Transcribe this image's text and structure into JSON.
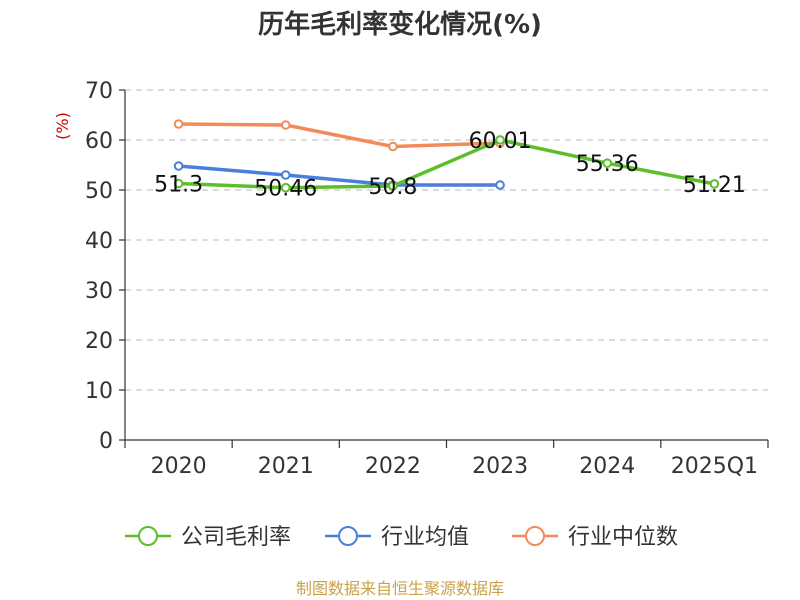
{
  "chart_data": {
    "type": "line",
    "title": "历年毛利率变化情况(%)",
    "unit_label": "(%)",
    "categories": [
      "2020",
      "2021",
      "2022",
      "2023",
      "2024",
      "2025Q1"
    ],
    "ylim": [
      0,
      70
    ],
    "yticks": [
      "0",
      "10",
      "20",
      "30",
      "40",
      "50",
      "60",
      "70"
    ],
    "grid": true,
    "legend_position": "bottom",
    "series": [
      {
        "name": "公司毛利率",
        "color": "#5bbf2a",
        "values": [
          51.3,
          50.46,
          50.8,
          60.01,
          55.36,
          51.21
        ],
        "labels": [
          "51.3",
          "50.46",
          "50.8",
          "60.01",
          "55.36",
          "51.21"
        ]
      },
      {
        "name": "行业均值",
        "color": "#4a7fdb",
        "values": [
          54.8,
          53.0,
          51.0,
          51.0,
          null,
          null
        ]
      },
      {
        "name": "行业中位数",
        "color": "#f28b59",
        "values": [
          63.2,
          63.0,
          58.7,
          59.4,
          null,
          null
        ]
      }
    ]
  },
  "source": "制图数据来自恒生聚源数据库"
}
